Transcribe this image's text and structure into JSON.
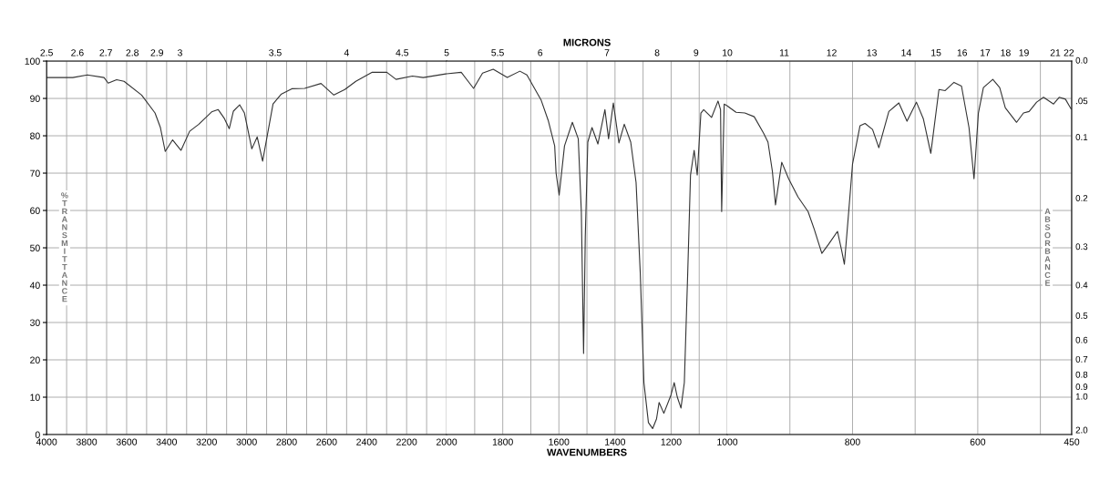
{
  "chart_data": [
    {
      "type": "line",
      "ylabel": "%TRANSMITTANCE",
      "xlim": [
        4000,
        2000
      ],
      "ylim": [
        0,
        100
      ],
      "xticks": [
        4000,
        {
          "value": 3900,
          "label": null
        },
        3800,
        {
          "value": 3700,
          "label": null
        },
        3600,
        {
          "value": 3500,
          "label": null
        },
        3400,
        {
          "value": 3300,
          "label": null
        },
        3200,
        {
          "value": 3100,
          "label": null
        },
        3000,
        {
          "value": 2900,
          "label": null
        },
        2800,
        {
          "value": 2700,
          "label": null
        },
        2600,
        {
          "value": 2500,
          "label": null
        },
        2400,
        {
          "value": 2300,
          "label": null
        },
        2200,
        {
          "value": 2100,
          "label": null
        },
        2000
      ],
      "yticks": [
        0,
        10,
        20,
        30,
        40,
        50,
        60,
        70,
        80,
        90,
        100
      ],
      "annotations": [
        "2.5",
        "2.6",
        "2.7",
        "2.8",
        "2.9",
        "3",
        "3.5",
        "4",
        "4.5",
        "5"
      ],
      "grid": true,
      "series": [
        {
          "color": "#333333",
          "x": [
            4000,
            3869,
            3796,
            3713,
            3692,
            3650,
            3613,
            3525,
            3458,
            3431,
            3407,
            3370,
            3328,
            3285,
            3239,
            3175,
            3142,
            3111,
            3087,
            3066,
            3035,
            3011,
            2974,
            2947,
            2920,
            2868,
            2828,
            2774,
            2710,
            2628,
            2564,
            2509,
            2454,
            2372,
            2299,
            2253,
            2171,
            2117,
            2000
          ],
          "values": [
            95.6,
            95.6,
            96.3,
            95.6,
            94.1,
            95.0,
            94.6,
            90.9,
            86.1,
            82.2,
            75.8,
            78.9,
            76.1,
            81.2,
            83.1,
            86.4,
            87.0,
            84.6,
            81.9,
            86.6,
            88.3,
            86.1,
            76.5,
            79.7,
            73.2,
            88.5,
            91.1,
            92.6,
            92.7,
            94.0,
            90.9,
            92.4,
            94.6,
            97.0,
            97.0,
            95.1,
            96.0,
            95.6,
            96.6
          ]
        }
      ]
    },
    {
      "type": "line",
      "xlabel": "WAVENUMBERS",
      "x2label": "MICRONS",
      "tick_labels": "x",
      "xlim": [
        2000,
        1000
      ],
      "ylim": [
        0,
        100
      ],
      "xticks": [
        {
          "value": 1900,
          "label": null
        },
        1800,
        {
          "value": 1700,
          "label": null
        },
        1600,
        {
          "value": 1500,
          "label": null
        },
        1400,
        {
          "value": 1300,
          "label": null
        },
        1200,
        {
          "value": 1100,
          "label": null
        },
        1000
      ],
      "yticks": [
        0,
        10,
        20,
        30,
        40,
        50,
        60,
        70,
        80,
        90,
        100
      ],
      "annotations": [
        "5.5",
        "6",
        "7",
        "8",
        "9",
        "10"
      ],
      "grid": true,
      "series": [
        {
          "color": "#333333",
          "x": [
            2000,
            1948,
            1904,
            1872,
            1834,
            1784,
            1739,
            1714,
            1663,
            1638,
            1615,
            1610,
            1599,
            1580,
            1552,
            1531,
            1520,
            1512,
            1506,
            1497,
            1482,
            1461,
            1436,
            1423,
            1406,
            1386,
            1367,
            1344,
            1325,
            1310,
            1297,
            1281,
            1266,
            1252,
            1243,
            1226,
            1201,
            1189,
            1178,
            1165,
            1153,
            1141,
            1131,
            1118,
            1107,
            1094,
            1084,
            1056,
            1033,
            1024,
            1020,
            1011,
            1000
          ],
          "values": [
            96.6,
            97.0,
            92.7,
            96.8,
            97.8,
            95.6,
            97.3,
            96.3,
            89.5,
            84.1,
            77.3,
            70.0,
            64.1,
            77.3,
            83.6,
            79.2,
            59.7,
            21.7,
            52.9,
            78.3,
            82.2,
            77.8,
            87.0,
            79.2,
            88.8,
            78.1,
            83.1,
            78.3,
            67.5,
            43.2,
            13.9,
            3.2,
            1.6,
            4.2,
            8.6,
            5.7,
            10.5,
            13.9,
            10.0,
            7.1,
            13.9,
            43.2,
            69.5,
            76.1,
            69.5,
            86.1,
            87.0,
            84.9,
            89.3,
            87.0,
            59.7,
            88.5,
            88.0
          ]
        }
      ]
    },
    {
      "type": "line",
      "y2label": "ABSORBANCE",
      "tick_labels": "x",
      "xlim": [
        1000,
        450
      ],
      "ylim": [
        0,
        100
      ],
      "xticks": [
        {
          "value": 900,
          "label": null
        },
        800,
        {
          "value": 700,
          "label": null
        },
        600,
        {
          "value": 500,
          "label": null
        },
        450
      ],
      "yticks": [
        0,
        10,
        20,
        30,
        40,
        50,
        60,
        70,
        80,
        90,
        100
      ],
      "annotations": [
        "11",
        "12",
        "13",
        "14",
        "15",
        "16",
        "17",
        "18",
        "19",
        "21",
        "22",
        "0.0",
        ".05",
        "0.1",
        "0.2",
        "0.3",
        "0.4",
        "0.5",
        "0.6",
        "0.7",
        "0.8",
        "0.9",
        "1.0",
        "2.0"
      ],
      "grid": true,
      "series": [
        {
          "color": "#333333",
          "x": [
            1000,
            986,
            972,
            957,
            942,
            935,
            928,
            923,
            913,
            902,
            887,
            871,
            861,
            849,
            838,
            824,
            817,
            813,
            807,
            800,
            788,
            780,
            768,
            758,
            742,
            726,
            713,
            698,
            687,
            675,
            662,
            652,
            638,
            626,
            614,
            606,
            599,
            591,
            576,
            565,
            556,
            538,
            527,
            518,
            506,
            495,
            479,
            470,
            460,
            451
          ],
          "values": [
            88.0,
            86.3,
            86.1,
            85.1,
            80.7,
            78.3,
            70.5,
            61.5,
            72.9,
            68.5,
            63.6,
            59.7,
            54.9,
            48.5,
            51.0,
            54.4,
            49.0,
            45.6,
            57.8,
            72.4,
            82.7,
            83.3,
            81.7,
            76.8,
            86.5,
            88.8,
            83.9,
            89.0,
            84.6,
            75.3,
            92.4,
            92.1,
            94.3,
            93.3,
            82.2,
            68.5,
            86.1,
            92.9,
            95.1,
            92.9,
            87.5,
            83.6,
            86.1,
            86.5,
            89.0,
            90.3,
            88.5,
            90.3,
            89.8,
            87.2
          ]
        }
      ]
    }
  ]
}
